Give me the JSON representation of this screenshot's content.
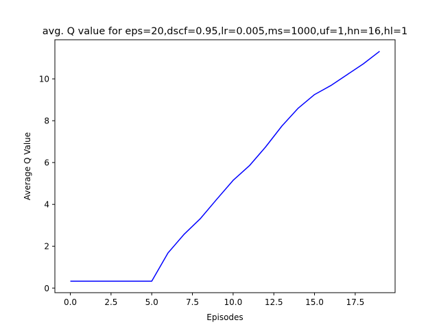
{
  "chart_data": {
    "type": "line",
    "title": "avg. Q value for eps=20,dscf=0.95,lr=0.005,ms=1000,uf=1,hn=16,hl=1",
    "xlabel": "Episodes",
    "ylabel": "Average Q Value",
    "xlim": [
      -0.95,
      19.95
    ],
    "ylim": [
      -0.22,
      11.87
    ],
    "xticks": [
      0,
      2.5,
      5,
      7.5,
      10,
      12.5,
      15,
      17.5
    ],
    "xtick_labels": [
      "0.0",
      "2.5",
      "5.0",
      "7.5",
      "10.0",
      "12.5",
      "15.0",
      "17.5"
    ],
    "yticks": [
      0,
      2,
      4,
      6,
      8,
      10
    ],
    "ytick_labels": [
      "0",
      "2",
      "4",
      "6",
      "8",
      "10"
    ],
    "grid": false,
    "legend": "none",
    "series": [
      {
        "color": "#0000ff",
        "x": [
          0,
          1,
          2,
          3,
          4,
          5,
          6,
          7,
          8,
          9,
          10,
          11,
          12,
          13,
          14,
          15,
          16,
          17,
          18,
          19
        ],
        "values": [
          0.33,
          0.33,
          0.33,
          0.33,
          0.33,
          0.33,
          1.68,
          2.58,
          3.33,
          4.25,
          5.15,
          5.85,
          6.75,
          7.75,
          8.6,
          9.25,
          9.68,
          10.2,
          10.72,
          11.32
        ]
      }
    ]
  }
}
